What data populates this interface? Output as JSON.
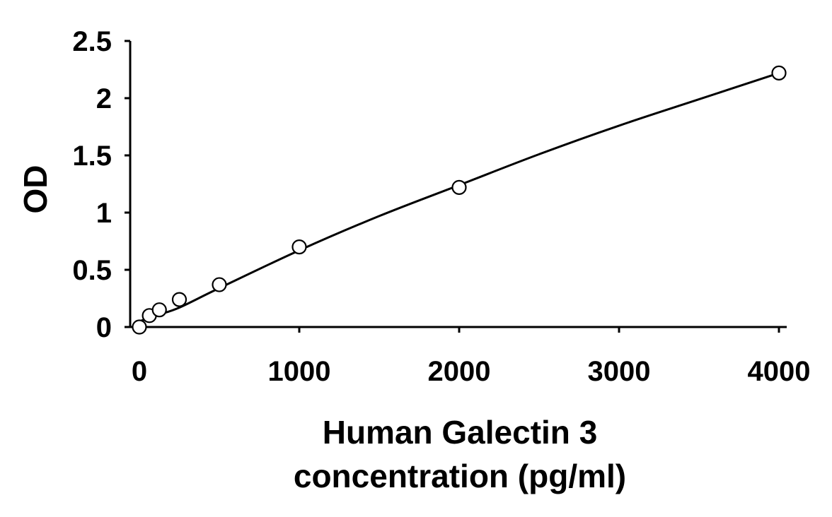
{
  "chart_data": {
    "type": "scatter",
    "title": "",
    "xlabel": [
      "Human Galectin 3",
      "concentration (pg/ml)"
    ],
    "ylabel": "OD",
    "xlim": [
      0,
      4000
    ],
    "ylim": [
      0,
      2.5
    ],
    "x_ticks": [
      "0",
      "1000",
      "2000",
      "3000",
      "4000"
    ],
    "y_ticks": [
      "0",
      "0.5",
      "1",
      "1.5",
      "2",
      "2.5"
    ],
    "grid": false,
    "legend": "none",
    "series": [
      {
        "marker": "open-circle",
        "x": [
          0,
          62.5,
          125,
          250,
          500,
          1000,
          2000,
          4000
        ],
        "y": [
          0.0,
          0.1,
          0.15,
          0.24,
          0.37,
          0.7,
          1.22,
          2.22
        ]
      }
    ],
    "fit_curve": {
      "x": [
        0,
        62.5,
        125,
        250,
        500,
        1000,
        1500,
        2000,
        2500,
        3000,
        3500,
        4000
      ],
      "y": [
        0.05,
        0.08,
        0.11,
        0.17,
        0.34,
        0.67,
        0.97,
        1.24,
        1.51,
        1.76,
        1.99,
        2.22
      ]
    }
  }
}
